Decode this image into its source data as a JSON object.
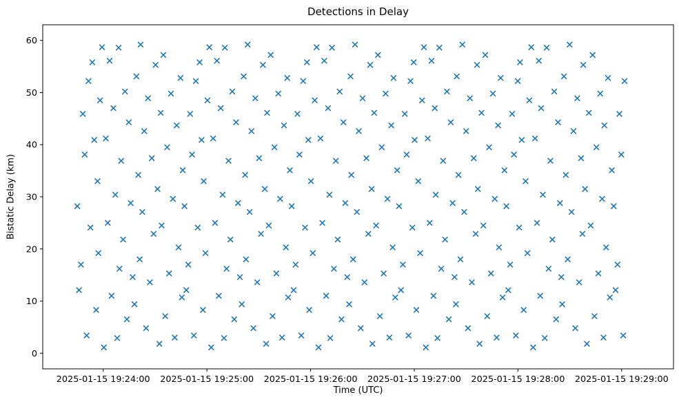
{
  "chart_data": {
    "type": "scatter",
    "title": "Detections in Delay",
    "xlabel": "Time (UTC)",
    "ylabel": "Bistatic Delay (km)",
    "marker": "x",
    "marker_color": "#1f77b4",
    "grid": false,
    "legend": null,
    "x_unit": "seconds since 2025-01-15 19:24:00 UTC",
    "xlim": [
      -35,
      330
    ],
    "ylim": [
      -3,
      63
    ],
    "x_ticks": [
      0,
      60,
      120,
      180,
      240,
      300
    ],
    "x_tick_labels": [
      "2025-01-15 19:24:00",
      "2025-01-15 19:25:00",
      "2025-01-15 19:26:00",
      "2025-01-15 19:27:00",
      "2025-01-15 19:28:00",
      "2025-01-15 19:29:00"
    ],
    "y_ticks": [
      0,
      10,
      20,
      30,
      40,
      50,
      60
    ],
    "points": [
      [
        -15.0,
        28.2
      ],
      [
        -14.0,
        12.1
      ],
      [
        -12.9,
        17.0
      ],
      [
        -11.8,
        45.9
      ],
      [
        -10.7,
        38.1
      ],
      [
        -9.6,
        3.4
      ],
      [
        -8.5,
        52.2
      ],
      [
        -7.4,
        24.1
      ],
      [
        -6.3,
        55.8
      ],
      [
        -5.2,
        40.9
      ],
      [
        -4.1,
        8.3
      ],
      [
        -3.3,
        33.0
      ],
      [
        -2.8,
        19.2
      ],
      [
        -1.8,
        48.5
      ],
      [
        -0.7,
        58.7
      ],
      [
        0.4,
        1.1
      ],
      [
        1.5,
        41.2
      ],
      [
        2.6,
        25.0
      ],
      [
        3.7,
        56.1
      ],
      [
        4.8,
        11.0
      ],
      [
        5.9,
        47.0
      ],
      [
        7.0,
        30.4
      ],
      [
        8.1,
        2.9
      ],
      [
        8.9,
        58.6
      ],
      [
        9.4,
        16.2
      ],
      [
        10.4,
        36.9
      ],
      [
        11.5,
        21.8
      ],
      [
        12.6,
        50.2
      ],
      [
        13.7,
        6.5
      ],
      [
        14.8,
        44.3
      ],
      [
        15.9,
        28.8
      ],
      [
        17.0,
        14.6
      ],
      [
        18.1,
        9.4
      ],
      [
        19.2,
        53.1
      ],
      [
        20.3,
        34.2
      ],
      [
        21.1,
        18.0
      ],
      [
        21.6,
        59.2
      ],
      [
        22.6,
        27.1
      ],
      [
        23.7,
        42.6
      ],
      [
        24.8,
        4.8
      ],
      [
        25.9,
        48.9
      ],
      [
        27.0,
        13.6
      ],
      [
        28.1,
        37.4
      ],
      [
        29.2,
        22.9
      ],
      [
        30.3,
        55.3
      ],
      [
        31.4,
        31.5
      ],
      [
        32.5,
        1.8
      ],
      [
        33.3,
        46.1
      ],
      [
        33.8,
        24.5
      ],
      [
        34.8,
        57.2
      ],
      [
        35.9,
        7.1
      ],
      [
        37.0,
        39.5
      ],
      [
        38.1,
        15.3
      ],
      [
        39.2,
        49.8
      ],
      [
        40.3,
        29.6
      ],
      [
        41.4,
        3.0
      ],
      [
        42.5,
        43.7
      ],
      [
        43.6,
        20.3
      ],
      [
        44.7,
        52.8
      ],
      [
        45.5,
        10.7
      ],
      [
        46.0,
        35.1
      ],
      [
        47.0,
        28.2
      ],
      [
        48.1,
        12.1
      ],
      [
        49.2,
        17.0
      ],
      [
        50.3,
        45.9
      ],
      [
        51.4,
        38.1
      ],
      [
        52.5,
        3.4
      ],
      [
        53.6,
        52.2
      ],
      [
        54.7,
        24.1
      ],
      [
        55.8,
        55.8
      ],
      [
        56.9,
        40.9
      ],
      [
        57.7,
        8.3
      ],
      [
        58.2,
        33.0
      ],
      [
        59.2,
        19.2
      ],
      [
        60.3,
        48.5
      ],
      [
        61.4,
        58.7
      ],
      [
        62.5,
        1.1
      ],
      [
        63.6,
        41.2
      ],
      [
        64.7,
        25.0
      ],
      [
        65.8,
        56.1
      ],
      [
        66.9,
        11.0
      ],
      [
        68.0,
        47.0
      ],
      [
        69.1,
        30.4
      ],
      [
        69.9,
        2.9
      ],
      [
        70.4,
        58.6
      ],
      [
        71.4,
        16.2
      ],
      [
        72.5,
        36.9
      ],
      [
        73.6,
        21.8
      ],
      [
        74.7,
        50.2
      ],
      [
        75.8,
        6.5
      ],
      [
        76.9,
        44.3
      ],
      [
        78.0,
        28.8
      ],
      [
        79.1,
        14.6
      ],
      [
        80.2,
        9.4
      ],
      [
        81.3,
        53.1
      ],
      [
        82.1,
        34.2
      ],
      [
        82.6,
        18.0
      ],
      [
        83.6,
        59.2
      ],
      [
        84.7,
        27.1
      ],
      [
        85.8,
        42.6
      ],
      [
        86.9,
        4.8
      ],
      [
        88.0,
        48.9
      ],
      [
        89.1,
        13.6
      ],
      [
        90.2,
        37.4
      ],
      [
        91.3,
        22.9
      ],
      [
        92.4,
        55.3
      ],
      [
        93.5,
        31.5
      ],
      [
        94.3,
        1.8
      ],
      [
        94.8,
        46.1
      ],
      [
        95.8,
        24.5
      ],
      [
        96.9,
        57.2
      ],
      [
        98.0,
        7.1
      ],
      [
        99.1,
        39.5
      ],
      [
        100.2,
        15.3
      ],
      [
        101.3,
        49.8
      ],
      [
        102.4,
        29.6
      ],
      [
        103.5,
        3.0
      ],
      [
        104.6,
        43.7
      ],
      [
        105.7,
        20.3
      ],
      [
        106.5,
        52.8
      ],
      [
        107.0,
        10.7
      ],
      [
        108.0,
        35.1
      ],
      [
        109.1,
        28.2
      ],
      [
        110.2,
        12.1
      ],
      [
        111.3,
        17.0
      ],
      [
        112.4,
        45.9
      ],
      [
        113.5,
        38.1
      ],
      [
        114.6,
        3.4
      ],
      [
        115.7,
        52.2
      ],
      [
        116.8,
        24.1
      ],
      [
        117.9,
        55.8
      ],
      [
        118.7,
        40.9
      ],
      [
        119.2,
        8.3
      ],
      [
        120.2,
        33.0
      ],
      [
        121.3,
        19.2
      ],
      [
        122.4,
        48.5
      ],
      [
        123.5,
        58.7
      ],
      [
        124.6,
        1.1
      ],
      [
        125.7,
        41.2
      ],
      [
        126.8,
        25.0
      ],
      [
        127.9,
        56.1
      ],
      [
        129.0,
        11.0
      ],
      [
        130.1,
        47.0
      ],
      [
        130.9,
        30.4
      ],
      [
        131.4,
        2.9
      ],
      [
        132.4,
        58.6
      ],
      [
        133.5,
        16.2
      ],
      [
        134.6,
        36.9
      ],
      [
        135.7,
        21.8
      ],
      [
        136.8,
        50.2
      ],
      [
        137.9,
        6.5
      ],
      [
        139.0,
        44.3
      ],
      [
        140.1,
        28.8
      ],
      [
        141.2,
        14.6
      ],
      [
        142.3,
        9.4
      ],
      [
        143.1,
        53.1
      ],
      [
        143.6,
        34.2
      ],
      [
        144.6,
        18.0
      ],
      [
        145.7,
        59.2
      ],
      [
        146.8,
        27.1
      ],
      [
        147.9,
        42.6
      ],
      [
        149.0,
        4.8
      ],
      [
        150.1,
        48.9
      ],
      [
        151.2,
        13.6
      ],
      [
        152.3,
        37.4
      ],
      [
        153.4,
        22.9
      ],
      [
        154.5,
        55.3
      ],
      [
        155.3,
        31.5
      ],
      [
        155.8,
        1.8
      ],
      [
        156.8,
        46.1
      ],
      [
        157.9,
        24.5
      ],
      [
        159.0,
        57.2
      ],
      [
        160.1,
        7.1
      ],
      [
        161.2,
        39.5
      ],
      [
        162.3,
        15.3
      ],
      [
        163.4,
        49.8
      ],
      [
        164.5,
        29.6
      ],
      [
        165.6,
        3.0
      ],
      [
        166.7,
        43.7
      ],
      [
        167.5,
        20.3
      ],
      [
        168.0,
        52.8
      ],
      [
        169.0,
        10.7
      ],
      [
        170.1,
        35.1
      ],
      [
        171.2,
        28.2
      ],
      [
        172.3,
        12.1
      ],
      [
        173.4,
        17.0
      ],
      [
        174.5,
        45.9
      ],
      [
        175.6,
        38.1
      ],
      [
        176.7,
        3.4
      ],
      [
        177.8,
        52.2
      ],
      [
        178.9,
        24.1
      ],
      [
        179.7,
        55.8
      ],
      [
        180.2,
        40.9
      ],
      [
        181.2,
        8.3
      ],
      [
        182.3,
        33.0
      ],
      [
        183.4,
        19.2
      ],
      [
        184.5,
        48.5
      ],
      [
        185.6,
        58.7
      ],
      [
        186.7,
        1.1
      ],
      [
        187.8,
        41.2
      ],
      [
        188.9,
        25.0
      ],
      [
        190.0,
        56.1
      ],
      [
        191.1,
        11.0
      ],
      [
        191.9,
        47.0
      ],
      [
        192.4,
        30.4
      ],
      [
        193.4,
        2.9
      ],
      [
        194.5,
        58.6
      ],
      [
        195.6,
        16.2
      ],
      [
        196.7,
        36.9
      ],
      [
        197.8,
        21.8
      ],
      [
        198.9,
        50.2
      ],
      [
        200.0,
        6.5
      ],
      [
        201.1,
        44.3
      ],
      [
        202.2,
        28.8
      ],
      [
        203.3,
        14.6
      ],
      [
        204.1,
        9.4
      ],
      [
        204.6,
        53.1
      ],
      [
        205.6,
        34.2
      ],
      [
        206.7,
        18.0
      ],
      [
        207.8,
        59.2
      ],
      [
        208.9,
        27.1
      ],
      [
        210.0,
        42.6
      ],
      [
        211.1,
        4.8
      ],
      [
        212.2,
        48.9
      ],
      [
        213.3,
        13.6
      ],
      [
        214.4,
        37.4
      ],
      [
        215.5,
        22.9
      ],
      [
        216.3,
        55.3
      ],
      [
        216.8,
        31.5
      ],
      [
        217.8,
        1.8
      ],
      [
        218.9,
        46.1
      ],
      [
        220.0,
        24.5
      ],
      [
        221.1,
        57.2
      ],
      [
        222.2,
        7.1
      ],
      [
        223.3,
        39.5
      ],
      [
        224.4,
        15.3
      ],
      [
        225.5,
        49.8
      ],
      [
        226.6,
        29.6
      ],
      [
        227.7,
        3.0
      ],
      [
        228.5,
        43.7
      ],
      [
        229.0,
        20.3
      ],
      [
        230.0,
        52.8
      ],
      [
        231.1,
        10.7
      ],
      [
        232.2,
        35.1
      ],
      [
        233.3,
        28.2
      ],
      [
        234.4,
        12.1
      ],
      [
        235.5,
        17.0
      ],
      [
        236.6,
        45.9
      ],
      [
        237.7,
        38.1
      ],
      [
        238.8,
        3.4
      ],
      [
        239.9,
        52.2
      ],
      [
        240.7,
        24.1
      ],
      [
        241.2,
        55.8
      ],
      [
        242.2,
        40.9
      ],
      [
        243.3,
        8.3
      ],
      [
        244.4,
        33.0
      ],
      [
        245.5,
        19.2
      ],
      [
        246.6,
        48.5
      ],
      [
        247.7,
        58.7
      ],
      [
        248.8,
        1.1
      ],
      [
        249.9,
        41.2
      ],
      [
        251.0,
        25.0
      ],
      [
        252.1,
        56.1
      ],
      [
        252.9,
        11.0
      ],
      [
        253.4,
        47.0
      ],
      [
        254.4,
        30.4
      ],
      [
        255.5,
        2.9
      ],
      [
        256.6,
        58.6
      ],
      [
        257.7,
        16.2
      ],
      [
        258.8,
        36.9
      ],
      [
        259.9,
        21.8
      ],
      [
        261.0,
        50.2
      ],
      [
        262.1,
        6.5
      ],
      [
        263.2,
        44.3
      ],
      [
        264.3,
        28.8
      ],
      [
        265.1,
        14.6
      ],
      [
        265.6,
        9.4
      ],
      [
        266.6,
        53.1
      ],
      [
        267.7,
        34.2
      ],
      [
        268.8,
        18.0
      ],
      [
        269.9,
        59.2
      ],
      [
        271.0,
        27.1
      ],
      [
        272.1,
        42.6
      ],
      [
        273.2,
        4.8
      ],
      [
        274.3,
        48.9
      ],
      [
        275.4,
        13.6
      ],
      [
        276.5,
        37.4
      ],
      [
        277.3,
        22.9
      ],
      [
        277.8,
        55.3
      ],
      [
        278.8,
        31.5
      ],
      [
        279.9,
        1.8
      ],
      [
        281.0,
        46.1
      ],
      [
        282.1,
        24.5
      ],
      [
        283.2,
        57.2
      ],
      [
        284.3,
        7.1
      ],
      [
        285.4,
        39.5
      ],
      [
        286.5,
        15.3
      ],
      [
        287.6,
        49.8
      ],
      [
        288.7,
        29.6
      ],
      [
        289.5,
        3.0
      ],
      [
        290.0,
        43.7
      ],
      [
        291.0,
        20.3
      ],
      [
        292.1,
        52.8
      ],
      [
        293.2,
        10.7
      ],
      [
        294.3,
        35.1
      ],
      [
        295.4,
        28.2
      ],
      [
        296.5,
        12.1
      ],
      [
        297.6,
        17.0
      ],
      [
        298.7,
        45.9
      ],
      [
        299.8,
        38.1
      ],
      [
        300.9,
        3.4
      ],
      [
        301.7,
        52.2
      ]
    ]
  }
}
